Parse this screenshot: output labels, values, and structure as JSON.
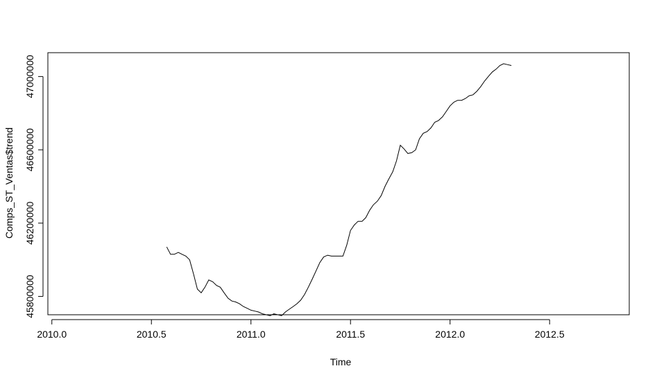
{
  "chart_data": {
    "type": "line",
    "title": "",
    "xlabel": "Time",
    "ylabel": "Comps_ST_Ventas$trend",
    "xlim": [
      2009.98,
      2012.9
    ],
    "ylim": [
      45700000,
      47130000
    ],
    "xticks": [
      2010.0,
      2010.5,
      2011.0,
      2011.5,
      2012.0,
      2012.5
    ],
    "xtick_labels": [
      "2010.0",
      "2010.5",
      "2011.0",
      "2011.5",
      "2012.0",
      "2012.5"
    ],
    "yticks": [
      45800000,
      46200000,
      46600000,
      47000000
    ],
    "ytick_labels": [
      "45800000",
      "46200000",
      "46600000",
      "47000000"
    ],
    "grid": false,
    "line_color": "#000000",
    "series": [
      {
        "x": [
          2010.577,
          2010.596,
          2010.615,
          2010.635,
          2010.654,
          2010.673,
          2010.692,
          2010.712,
          2010.731,
          2010.75,
          2010.769,
          2010.788,
          2010.808,
          2010.827,
          2010.846,
          2010.865,
          2010.885,
          2010.904,
          2010.923,
          2010.942,
          2010.962,
          2010.981,
          2011.0,
          2011.019,
          2011.038,
          2011.058,
          2011.077,
          2011.096,
          2011.115,
          2011.135,
          2011.154,
          2011.173,
          2011.192,
          2011.212,
          2011.231,
          2011.25,
          2011.269,
          2011.288,
          2011.308,
          2011.327,
          2011.346,
          2011.365,
          2011.385,
          2011.404,
          2011.423,
          2011.442,
          2011.462,
          2011.481,
          2011.5,
          2011.519,
          2011.538,
          2011.558,
          2011.577,
          2011.596,
          2011.615,
          2011.635,
          2011.654,
          2011.673,
          2011.692,
          2011.712,
          2011.731,
          2011.75,
          2011.769,
          2011.788,
          2011.808,
          2011.827,
          2011.846,
          2011.865,
          2011.885,
          2011.904,
          2011.923,
          2011.942,
          2011.962,
          2011.981,
          2012.0,
          2012.019,
          2012.038,
          2012.058,
          2012.077,
          2012.096,
          2012.115,
          2012.135,
          2012.154,
          2012.173,
          2012.192,
          2012.212,
          2012.231,
          2012.25,
          2012.269,
          2012.288,
          2012.308
        ],
        "y": [
          46070000,
          46030000,
          46030000,
          46040000,
          46030000,
          46020000,
          46000000,
          45920000,
          45840000,
          45820000,
          45850000,
          45890000,
          45880000,
          45860000,
          45850000,
          45820000,
          45790000,
          45775000,
          45770000,
          45760000,
          45745000,
          45735000,
          45725000,
          45720000,
          45715000,
          45705000,
          45700000,
          45695000,
          45705000,
          45700000,
          45695000,
          45715000,
          45730000,
          45745000,
          45760000,
          45780000,
          45810000,
          45850000,
          45895000,
          45940000,
          45985000,
          46015000,
          46025000,
          46020000,
          46020000,
          46020000,
          46020000,
          46080000,
          46160000,
          46190000,
          46210000,
          46210000,
          46230000,
          46270000,
          46300000,
          46320000,
          46350000,
          46400000,
          46440000,
          46480000,
          46540000,
          46625000,
          46605000,
          46580000,
          46585000,
          46600000,
          46660000,
          46690000,
          46700000,
          46720000,
          46750000,
          46760000,
          46780000,
          46810000,
          46840000,
          46860000,
          46870000,
          46870000,
          46880000,
          46895000,
          46900000,
          46920000,
          46945000,
          46975000,
          47000000,
          47025000,
          47040000,
          47060000,
          47070000,
          47065000,
          47060000
        ]
      }
    ]
  }
}
